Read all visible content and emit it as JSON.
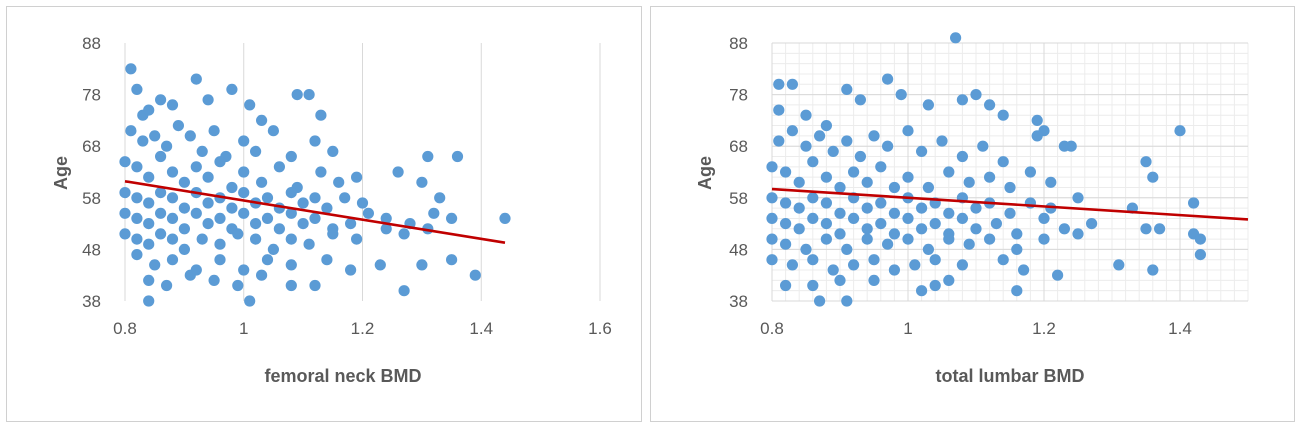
{
  "chart_data": [
    {
      "type": "scatter",
      "xlabel": "femoral neck BMD",
      "ylabel": "Age",
      "xlim": [
        0.8,
        1.6
      ],
      "ylim": [
        38,
        88
      ],
      "xticks": [
        "0.8",
        "1",
        "1.2",
        "1.4",
        "1.6"
      ],
      "yticks": [
        "38",
        "48",
        "58",
        "68",
        "78",
        "88"
      ],
      "grid": "vertical major gridlines",
      "trendline": {
        "x": [
          0.8,
          1.44
        ],
        "y": [
          61.2,
          49.3
        ]
      },
      "point_color": "#5B9BD5",
      "trend_color": "#C00000",
      "points": [
        [
          0.81,
          83
        ],
        [
          0.82,
          79
        ],
        [
          0.83,
          74
        ],
        [
          0.84,
          75
        ],
        [
          0.86,
          77
        ],
        [
          0.88,
          76
        ],
        [
          0.92,
          81
        ],
        [
          0.94,
          77
        ],
        [
          0.98,
          79
        ],
        [
          1.01,
          76
        ],
        [
          1.03,
          73
        ],
        [
          1.09,
          78
        ],
        [
          1.11,
          78
        ],
        [
          1.13,
          74
        ],
        [
          0.81,
          71
        ],
        [
          0.83,
          69
        ],
        [
          0.85,
          70
        ],
        [
          0.87,
          68
        ],
        [
          0.89,
          72
        ],
        [
          0.91,
          70
        ],
        [
          0.93,
          67
        ],
        [
          0.95,
          71
        ],
        [
          0.97,
          66
        ],
        [
          1.0,
          69
        ],
        [
          1.02,
          67
        ],
        [
          1.05,
          71
        ],
        [
          1.08,
          66
        ],
        [
          1.12,
          69
        ],
        [
          1.15,
          67
        ],
        [
          0.8,
          65
        ],
        [
          0.82,
          64
        ],
        [
          0.84,
          62
        ],
        [
          0.86,
          66
        ],
        [
          0.88,
          63
        ],
        [
          0.9,
          61
        ],
        [
          0.92,
          64
        ],
        [
          0.94,
          62
        ],
        [
          0.96,
          65
        ],
        [
          0.98,
          60
        ],
        [
          1.0,
          63
        ],
        [
          1.03,
          61
        ],
        [
          1.06,
          64
        ],
        [
          1.09,
          60
        ],
        [
          1.13,
          63
        ],
        [
          1.16,
          61
        ],
        [
          1.19,
          62
        ],
        [
          0.8,
          59
        ],
        [
          0.82,
          58
        ],
        [
          0.84,
          57
        ],
        [
          0.86,
          59
        ],
        [
          0.88,
          58
        ],
        [
          0.9,
          56
        ],
        [
          0.92,
          59
        ],
        [
          0.94,
          57
        ],
        [
          0.96,
          58
        ],
        [
          0.98,
          56
        ],
        [
          1.0,
          59
        ],
        [
          1.02,
          57
        ],
        [
          1.04,
          58
        ],
        [
          1.06,
          56
        ],
        [
          1.08,
          59
        ],
        [
          1.1,
          57
        ],
        [
          1.12,
          58
        ],
        [
          1.14,
          56
        ],
        [
          1.17,
          58
        ],
        [
          1.2,
          57
        ],
        [
          0.8,
          55
        ],
        [
          0.82,
          54
        ],
        [
          0.84,
          53
        ],
        [
          0.86,
          55
        ],
        [
          0.88,
          54
        ],
        [
          0.9,
          52
        ],
        [
          0.92,
          55
        ],
        [
          0.94,
          53
        ],
        [
          0.96,
          54
        ],
        [
          0.98,
          52
        ],
        [
          1.0,
          55
        ],
        [
          1.02,
          53
        ],
        [
          1.04,
          54
        ],
        [
          1.06,
          52
        ],
        [
          1.08,
          55
        ],
        [
          1.1,
          53
        ],
        [
          1.12,
          54
        ],
        [
          1.15,
          52
        ],
        [
          1.18,
          53
        ],
        [
          1.21,
          55
        ],
        [
          1.24,
          54
        ],
        [
          0.8,
          51
        ],
        [
          0.82,
          50
        ],
        [
          0.84,
          49
        ],
        [
          0.86,
          51
        ],
        [
          0.88,
          50
        ],
        [
          0.9,
          48
        ],
        [
          0.93,
          50
        ],
        [
          0.96,
          49
        ],
        [
          0.99,
          51
        ],
        [
          1.02,
          50
        ],
        [
          1.05,
          48
        ],
        [
          1.08,
          50
        ],
        [
          1.11,
          49
        ],
        [
          1.15,
          51
        ],
        [
          1.19,
          50
        ],
        [
          1.24,
          52
        ],
        [
          1.27,
          51
        ],
        [
          0.82,
          47
        ],
        [
          0.85,
          45
        ],
        [
          0.88,
          46
        ],
        [
          0.92,
          44
        ],
        [
          0.96,
          46
        ],
        [
          1.0,
          44
        ],
        [
          1.04,
          46
        ],
        [
          1.08,
          45
        ],
        [
          1.14,
          46
        ],
        [
          1.18,
          44
        ],
        [
          1.23,
          45
        ],
        [
          0.84,
          42
        ],
        [
          0.87,
          41
        ],
        [
          0.91,
          43
        ],
        [
          0.95,
          42
        ],
        [
          0.99,
          41
        ],
        [
          1.03,
          43
        ],
        [
          1.08,
          41
        ],
        [
          1.12,
          41
        ],
        [
          1.01,
          38
        ],
        [
          0.84,
          38
        ],
        [
          1.26,
          63
        ],
        [
          1.3,
          61
        ],
        [
          1.31,
          66
        ],
        [
          1.33,
          58
        ],
        [
          1.36,
          66
        ],
        [
          1.32,
          55
        ],
        [
          1.35,
          54
        ],
        [
          1.31,
          52
        ],
        [
          1.3,
          45
        ],
        [
          1.35,
          46
        ],
        [
          1.39,
          43
        ],
        [
          1.44,
          54
        ],
        [
          1.27,
          40
        ],
        [
          1.28,
          53
        ]
      ]
    },
    {
      "type": "scatter",
      "xlabel": "total lumbar BMD",
      "ylabel": "Age",
      "xlim": [
        0.8,
        1.5
      ],
      "ylim": [
        38,
        88
      ],
      "xticks": [
        "0.8",
        "1",
        "1.2",
        "1.4"
      ],
      "yticks": [
        "38",
        "48",
        "58",
        "68",
        "78",
        "88"
      ],
      "grid": "major and minor gridlines",
      "trendline": {
        "x": [
          0.8,
          1.5
        ],
        "y": [
          59.7,
          53.8
        ]
      },
      "point_color": "#5B9BD5",
      "trend_color": "#C00000",
      "points": [
        [
          0.81,
          80
        ],
        [
          0.83,
          80
        ],
        [
          0.81,
          75
        ],
        [
          0.85,
          74
        ],
        [
          0.88,
          72
        ],
        [
          0.91,
          79
        ],
        [
          0.93,
          77
        ],
        [
          0.97,
          81
        ],
        [
          0.99,
          78
        ],
        [
          1.03,
          76
        ],
        [
          1.07,
          89
        ],
        [
          1.08,
          77
        ],
        [
          1.1,
          78
        ],
        [
          1.12,
          76
        ],
        [
          1.14,
          74
        ],
        [
          1.19,
          73
        ],
        [
          1.2,
          71
        ],
        [
          1.23,
          68
        ],
        [
          1.4,
          71
        ],
        [
          0.81,
          69
        ],
        [
          0.83,
          71
        ],
        [
          0.85,
          68
        ],
        [
          0.87,
          70
        ],
        [
          0.89,
          67
        ],
        [
          0.91,
          69
        ],
        [
          0.93,
          66
        ],
        [
          0.95,
          70
        ],
        [
          0.97,
          68
        ],
        [
          1.0,
          71
        ],
        [
          1.02,
          67
        ],
        [
          1.05,
          69
        ],
        [
          1.08,
          66
        ],
        [
          1.11,
          68
        ],
        [
          1.14,
          65
        ],
        [
          1.19,
          70
        ],
        [
          1.24,
          68
        ],
        [
          1.35,
          65
        ],
        [
          0.8,
          64
        ],
        [
          0.82,
          63
        ],
        [
          0.84,
          61
        ],
        [
          0.86,
          65
        ],
        [
          0.88,
          62
        ],
        [
          0.9,
          60
        ],
        [
          0.92,
          63
        ],
        [
          0.94,
          61
        ],
        [
          0.96,
          64
        ],
        [
          0.98,
          60
        ],
        [
          1.0,
          62
        ],
        [
          1.03,
          60
        ],
        [
          1.06,
          63
        ],
        [
          1.09,
          61
        ],
        [
          1.12,
          62
        ],
        [
          1.15,
          60
        ],
        [
          1.18,
          63
        ],
        [
          1.21,
          61
        ],
        [
          1.36,
          62
        ],
        [
          0.8,
          58
        ],
        [
          0.82,
          57
        ],
        [
          0.84,
          56
        ],
        [
          0.86,
          58
        ],
        [
          0.88,
          57
        ],
        [
          0.9,
          55
        ],
        [
          0.92,
          58
        ],
        [
          0.94,
          56
        ],
        [
          0.96,
          57
        ],
        [
          0.98,
          55
        ],
        [
          1.0,
          58
        ],
        [
          1.02,
          56
        ],
        [
          1.04,
          57
        ],
        [
          1.06,
          55
        ],
        [
          1.08,
          58
        ],
        [
          1.1,
          56
        ],
        [
          1.12,
          57
        ],
        [
          1.15,
          55
        ],
        [
          1.18,
          57
        ],
        [
          1.21,
          56
        ],
        [
          1.25,
          58
        ],
        [
          1.42,
          57
        ],
        [
          0.8,
          54
        ],
        [
          0.82,
          53
        ],
        [
          0.84,
          52
        ],
        [
          0.86,
          54
        ],
        [
          0.88,
          53
        ],
        [
          0.9,
          51
        ],
        [
          0.92,
          54
        ],
        [
          0.94,
          52
        ],
        [
          0.96,
          53
        ],
        [
          0.98,
          51
        ],
        [
          1.0,
          54
        ],
        [
          1.02,
          52
        ],
        [
          1.04,
          53
        ],
        [
          1.06,
          51
        ],
        [
          1.08,
          54
        ],
        [
          1.1,
          52
        ],
        [
          1.13,
          53
        ],
        [
          1.16,
          51
        ],
        [
          1.2,
          54
        ],
        [
          1.23,
          52
        ],
        [
          1.27,
          53
        ],
        [
          1.33,
          56
        ],
        [
          1.35,
          52
        ],
        [
          1.37,
          52
        ],
        [
          0.8,
          50
        ],
        [
          0.82,
          49
        ],
        [
          0.85,
          48
        ],
        [
          0.88,
          50
        ],
        [
          0.91,
          48
        ],
        [
          0.94,
          50
        ],
        [
          0.97,
          49
        ],
        [
          1.0,
          50
        ],
        [
          1.03,
          48
        ],
        [
          1.06,
          50
        ],
        [
          1.09,
          49
        ],
        [
          1.12,
          50
        ],
        [
          1.16,
          48
        ],
        [
          1.2,
          50
        ],
        [
          1.25,
          51
        ],
        [
          1.42,
          51
        ],
        [
          1.43,
          50
        ],
        [
          0.8,
          46
        ],
        [
          0.83,
          45
        ],
        [
          0.86,
          46
        ],
        [
          0.89,
          44
        ],
        [
          0.92,
          45
        ],
        [
          0.95,
          46
        ],
        [
          0.98,
          44
        ],
        [
          1.01,
          45
        ],
        [
          1.04,
          46
        ],
        [
          1.08,
          45
        ],
        [
          1.14,
          46
        ],
        [
          1.17,
          44
        ],
        [
          1.22,
          43
        ],
        [
          1.31,
          45
        ],
        [
          1.36,
          44
        ],
        [
          1.43,
          47
        ],
        [
          0.82,
          41
        ],
        [
          0.86,
          41
        ],
        [
          0.9,
          42
        ],
        [
          0.95,
          42
        ],
        [
          1.02,
          40
        ],
        [
          1.04,
          41
        ],
        [
          1.06,
          42
        ],
        [
          1.16,
          40
        ],
        [
          0.87,
          38
        ],
        [
          0.91,
          38
        ]
      ]
    }
  ]
}
